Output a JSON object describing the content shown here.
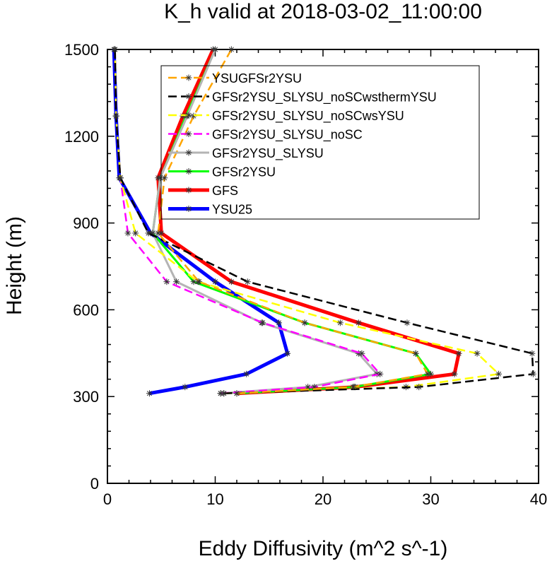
{
  "chart_data": {
    "type": "line",
    "title": "K_h valid at 2018-03-02_11:00:00",
    "xlabel": "Eddy Diffusivity (m^2 s^-1)",
    "ylabel": "Height (m)",
    "xlim": [
      0,
      40
    ],
    "ylim": [
      0,
      1500
    ],
    "x_ticks": [
      0,
      10,
      20,
      30,
      40
    ],
    "y_ticks": [
      0,
      300,
      600,
      900,
      1200,
      1500
    ],
    "grid": false,
    "legend_position": "top-right (inside plot)",
    "series": [
      {
        "name": "YSUGFSr2YSU",
        "color": "#FFA500",
        "dash": "dashed",
        "points": [
          {
            "x": 12.0,
            "y": 311
          },
          {
            "x": 22.8,
            "y": 333
          },
          {
            "x": 29.7,
            "y": 378
          },
          {
            "x": 28.6,
            "y": 449
          },
          {
            "x": 18.3,
            "y": 555
          },
          {
            "x": 8.5,
            "y": 697
          },
          {
            "x": 4.7,
            "y": 865
          },
          {
            "x": 5.3,
            "y": 1056
          },
          {
            "x": 8.0,
            "y": 1270
          },
          {
            "x": 11.5,
            "y": 1500
          }
        ]
      },
      {
        "name": "GFSr2YSU_SLYSU_noSCwsthermYSU",
        "color": "#000000",
        "dash": "dashed",
        "points": [
          {
            "x": 10.8,
            "y": 311
          },
          {
            "x": 28.9,
            "y": 333
          },
          {
            "x": 39.5,
            "y": 378
          },
          {
            "x": 39.4,
            "y": 449
          },
          {
            "x": 27.8,
            "y": 555
          },
          {
            "x": 13.0,
            "y": 697
          },
          {
            "x": 3.8,
            "y": 865
          },
          {
            "x": 1.2,
            "y": 1056
          },
          {
            "x": 0.8,
            "y": 1270
          },
          {
            "x": 0.7,
            "y": 1500
          }
        ]
      },
      {
        "name": "GFSr2YSU_SLYSU_noSCwsYSU",
        "color": "#FFFF00",
        "dash": "dashed",
        "points": [
          {
            "x": 10.8,
            "y": 311
          },
          {
            "x": 27.7,
            "y": 333
          },
          {
            "x": 36.3,
            "y": 378
          },
          {
            "x": 34.3,
            "y": 449
          },
          {
            "x": 21.6,
            "y": 555
          },
          {
            "x": 8.4,
            "y": 697
          },
          {
            "x": 2.6,
            "y": 865
          },
          {
            "x": 1.2,
            "y": 1056
          },
          {
            "x": 0.8,
            "y": 1270
          },
          {
            "x": 0.7,
            "y": 1500
          }
        ]
      },
      {
        "name": "GFSr2YSU_SLYSU_noSC",
        "color": "#FF00FF",
        "dash": "dashed",
        "points": [
          {
            "x": 10.5,
            "y": 311
          },
          {
            "x": 19.2,
            "y": 333
          },
          {
            "x": 25.3,
            "y": 378
          },
          {
            "x": 23.6,
            "y": 449
          },
          {
            "x": 14.4,
            "y": 555
          },
          {
            "x": 5.5,
            "y": 697
          },
          {
            "x": 1.9,
            "y": 865
          },
          {
            "x": 1.2,
            "y": 1056
          },
          {
            "x": 0.8,
            "y": 1270
          },
          {
            "x": 0.7,
            "y": 1500
          }
        ]
      },
      {
        "name": "GFSr2YSU_SLYSU",
        "color": "#B4B4B4",
        "dash": "solid",
        "points": [
          {
            "x": 10.5,
            "y": 311
          },
          {
            "x": 18.6,
            "y": 333
          },
          {
            "x": 25.0,
            "y": 378
          },
          {
            "x": 23.3,
            "y": 449
          },
          {
            "x": 14.3,
            "y": 555
          },
          {
            "x": 6.4,
            "y": 697
          },
          {
            "x": 4.2,
            "y": 865
          },
          {
            "x": 4.9,
            "y": 1056
          },
          {
            "x": 7.4,
            "y": 1270
          },
          {
            "x": 10.0,
            "y": 1500
          }
        ]
      },
      {
        "name": "GFSr2YSU",
        "color": "#00FF00",
        "dash": "solid",
        "points": [
          {
            "x": 12.0,
            "y": 311
          },
          {
            "x": 22.9,
            "y": 333
          },
          {
            "x": 30.0,
            "y": 378
          },
          {
            "x": 28.6,
            "y": 449
          },
          {
            "x": 18.3,
            "y": 555
          },
          {
            "x": 8.0,
            "y": 697
          },
          {
            "x": 4.2,
            "y": 865
          },
          {
            "x": 4.9,
            "y": 1056
          },
          {
            "x": 7.3,
            "y": 1270
          },
          {
            "x": 10.0,
            "y": 1500
          }
        ]
      },
      {
        "name": "GFS",
        "color": "#FF0000",
        "dash": "solid",
        "points": [
          {
            "x": 12.0,
            "y": 311
          },
          {
            "x": 23.0,
            "y": 333
          },
          {
            "x": 32.2,
            "y": 378
          },
          {
            "x": 32.6,
            "y": 449
          },
          {
            "x": 23.3,
            "y": 555
          },
          {
            "x": 11.5,
            "y": 697
          },
          {
            "x": 5.0,
            "y": 865
          },
          {
            "x": 4.7,
            "y": 1056
          },
          {
            "x": 7.0,
            "y": 1270
          },
          {
            "x": 9.8,
            "y": 1500
          }
        ]
      },
      {
        "name": "YSU25",
        "color": "#0000FF",
        "dash": "solid",
        "points": [
          {
            "x": 3.9,
            "y": 311
          },
          {
            "x": 7.2,
            "y": 333
          },
          {
            "x": 12.9,
            "y": 378
          },
          {
            "x": 16.7,
            "y": 449
          },
          {
            "x": 15.9,
            "y": 555
          },
          {
            "x": 10.0,
            "y": 697
          },
          {
            "x": 4.0,
            "y": 865
          },
          {
            "x": 1.1,
            "y": 1056
          },
          {
            "x": 0.8,
            "y": 1270
          },
          {
            "x": 0.6,
            "y": 1500
          }
        ]
      }
    ]
  }
}
